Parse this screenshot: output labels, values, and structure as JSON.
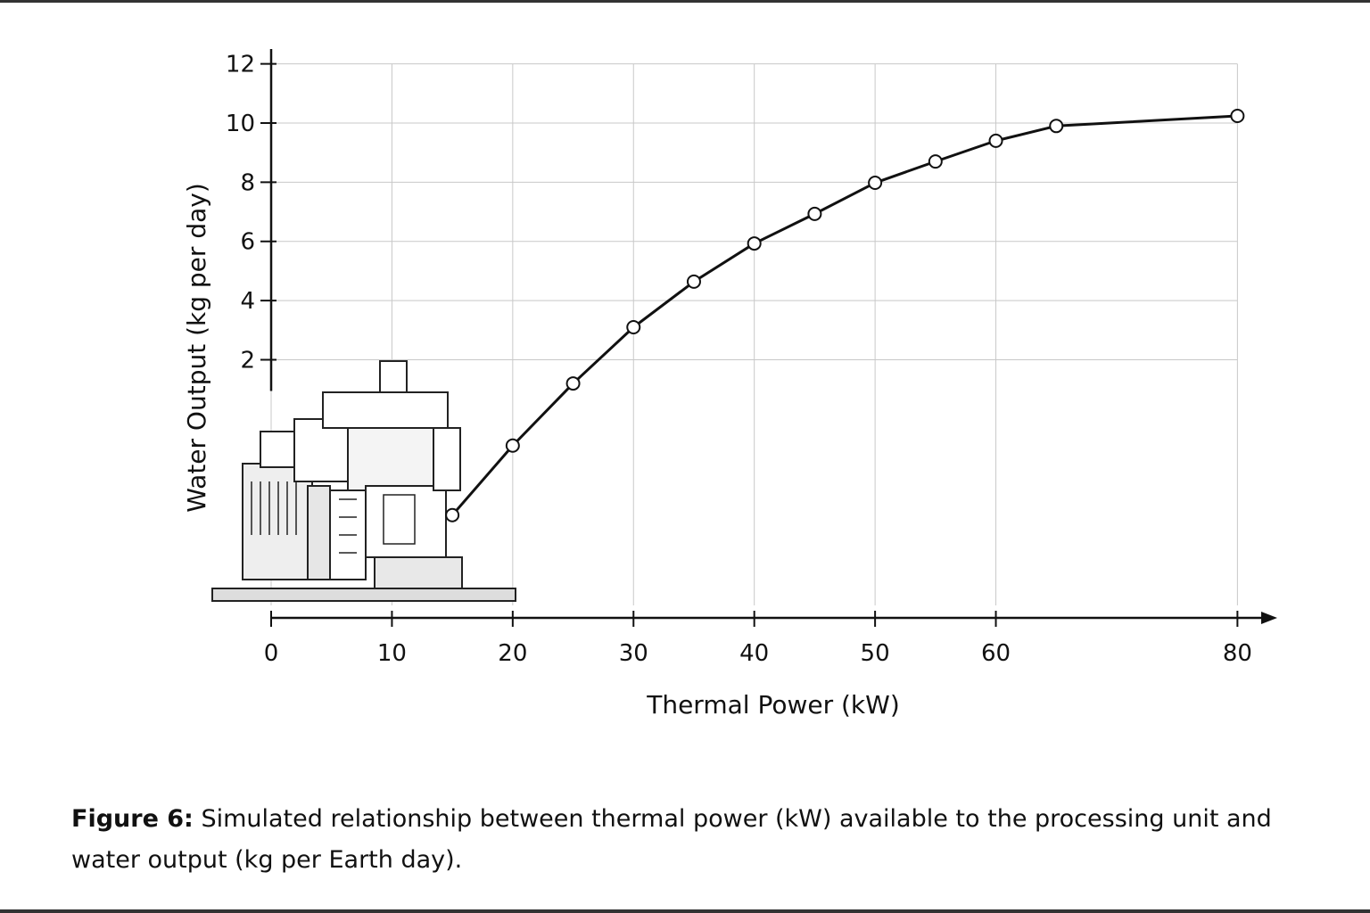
{
  "chart_data": {
    "type": "line",
    "x_label": "Thermal Power (kW)",
    "y_label": "Water Output (kg per day)",
    "x": [
      15,
      20,
      25,
      30,
      35,
      40,
      45,
      50,
      55,
      60,
      65,
      80
    ],
    "series": [
      {
        "name": "Water output",
        "color": "#111111",
        "values": [
          -3.25,
          -0.9,
          1.2,
          3.1,
          4.64,
          5.93,
          6.93,
          7.98,
          8.7,
          9.4,
          9.9,
          10.24
        ]
      }
    ],
    "xlim": [
      0,
      83
    ],
    "xticks": [
      0,
      10,
      20,
      30,
      40,
      50,
      60,
      80
    ],
    "ylim": [
      -6.3,
      12.5
    ],
    "yticks": [
      2,
      4,
      6,
      8,
      10,
      12
    ],
    "grid": true,
    "caption_label": "Figure 6:",
    "caption_text": "Simulated relationship between thermal power (kW) available to the processing unit and water output (kg per Earth day)."
  }
}
